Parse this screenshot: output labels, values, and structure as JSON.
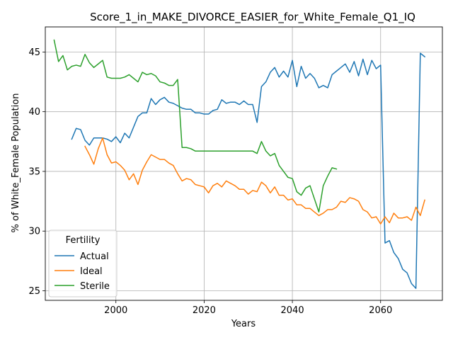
{
  "chart_data": {
    "type": "line",
    "title": "Score_1_in_MAKE_DIVORCE_EASIER_for_White_Female_Q1_IQ",
    "xlabel": "Years",
    "ylabel": "% of White_Female Population",
    "xlim": [
      1984,
      2074
    ],
    "ylim": [
      24.2,
      47.1
    ],
    "xticks": [
      2000,
      2020,
      2040,
      2060
    ],
    "yticks": [
      25,
      30,
      35,
      40,
      45
    ],
    "grid": true,
    "legend": {
      "title": "Fertility",
      "position": "lower-left",
      "entries": [
        "Actual",
        "Ideal",
        "Sterile"
      ]
    },
    "colors": {
      "Actual": "#1f77b4",
      "Ideal": "#ff7f0e",
      "Sterile": "#2ca02c"
    },
    "series": [
      {
        "name": "Actual",
        "x": [
          1990,
          1991,
          1992,
          1993,
          1994,
          1995,
          1996,
          1997,
          1998,
          1999,
          2000,
          2001,
          2002,
          2003,
          2004,
          2005,
          2006,
          2007,
          2008,
          2009,
          2010,
          2011,
          2012,
          2013,
          2014,
          2015,
          2016,
          2017,
          2018,
          2019,
          2020,
          2021,
          2022,
          2023,
          2024,
          2025,
          2026,
          2027,
          2028,
          2029,
          2030,
          2031,
          2032,
          2033,
          2034,
          2035,
          2036,
          2037,
          2038,
          2039,
          2040,
          2041,
          2042,
          2043,
          2044,
          2045,
          2046,
          2047,
          2048,
          2049,
          2050,
          2051,
          2052,
          2053,
          2054,
          2055,
          2056,
          2057,
          2058,
          2059,
          2060,
          2061,
          2062,
          2063,
          2064,
          2065,
          2066,
          2067,
          2068,
          2069,
          2070
        ],
        "y": [
          37.7,
          38.6,
          38.5,
          37.6,
          37.2,
          37.8,
          37.8,
          37.8,
          37.7,
          37.5,
          37.9,
          37.4,
          38.2,
          37.8,
          38.7,
          39.6,
          39.9,
          39.9,
          41.1,
          40.6,
          41.0,
          41.2,
          40.8,
          40.7,
          40.5,
          40.3,
          40.2,
          40.2,
          39.9,
          39.9,
          39.8,
          39.8,
          40.1,
          40.2,
          41.0,
          40.7,
          40.8,
          40.8,
          40.6,
          40.9,
          40.6,
          40.6,
          39.1,
          42.1,
          42.5,
          43.3,
          43.7,
          42.9,
          43.4,
          42.9,
          44.3,
          42.1,
          43.8,
          42.8,
          43.2,
          42.8,
          42.0,
          42.2,
          42.0,
          43.1,
          43.4,
          43.7,
          44.0,
          43.3,
          44.2,
          43.0,
          44.4,
          43.1,
          44.3,
          43.6,
          43.9,
          29.0,
          29.2,
          28.2,
          27.7,
          26.8,
          26.5,
          25.6,
          25.2,
          44.9,
          44.6
        ]
      },
      {
        "name": "Ideal",
        "x": [
          1993,
          1994,
          1995,
          1996,
          1997,
          1998,
          1999,
          2000,
          2001,
          2002,
          2003,
          2004,
          2005,
          2006,
          2007,
          2008,
          2009,
          2010,
          2011,
          2012,
          2013,
          2014,
          2015,
          2016,
          2017,
          2018,
          2019,
          2020,
          2021,
          2022,
          2023,
          2024,
          2025,
          2026,
          2027,
          2028,
          2029,
          2030,
          2031,
          2032,
          2033,
          2034,
          2035,
          2036,
          2037,
          2038,
          2039,
          2040,
          2041,
          2042,
          2043,
          2044,
          2045,
          2046,
          2047,
          2048,
          2049,
          2050,
          2051,
          2052,
          2053,
          2054,
          2055,
          2056,
          2057,
          2058,
          2059,
          2060,
          2061,
          2062,
          2063,
          2064,
          2065,
          2066,
          2067,
          2068,
          2069,
          2070
        ],
        "y": [
          37.1,
          36.4,
          35.6,
          36.9,
          37.8,
          36.4,
          35.7,
          35.8,
          35.5,
          35.1,
          34.3,
          34.8,
          33.9,
          35.1,
          35.8,
          36.4,
          36.2,
          36.0,
          36.0,
          35.7,
          35.5,
          34.8,
          34.2,
          34.4,
          34.3,
          33.9,
          33.8,
          33.7,
          33.2,
          33.8,
          34.0,
          33.7,
          34.2,
          34.0,
          33.8,
          33.5,
          33.5,
          33.1,
          33.4,
          33.3,
          34.1,
          33.8,
          33.2,
          33.7,
          33.0,
          33.0,
          32.6,
          32.7,
          32.2,
          32.2,
          31.9,
          31.9,
          31.6,
          31.3,
          31.5,
          31.8,
          31.8,
          32.0,
          32.5,
          32.4,
          32.8,
          32.7,
          32.5,
          31.8,
          31.6,
          31.1,
          31.2,
          30.6,
          31.2,
          30.7,
          31.5,
          31.1,
          31.1,
          31.2,
          30.9,
          32.0,
          31.3,
          32.6
        ]
      },
      {
        "name": "Sterile",
        "x": [
          1986,
          1987,
          1988,
          1989,
          1990,
          1991,
          1992,
          1993,
          1994,
          1995,
          1996,
          1997,
          1998,
          1999,
          2000,
          2001,
          2002,
          2003,
          2004,
          2005,
          2006,
          2007,
          2008,
          2009,
          2010,
          2011,
          2012,
          2013,
          2014,
          2015,
          2016,
          2017,
          2018,
          2019,
          2020,
          2021,
          2022,
          2023,
          2024,
          2025,
          2026,
          2027,
          2028,
          2029,
          2030,
          2031,
          2032,
          2033,
          2034,
          2035,
          2036,
          2037,
          2038,
          2039,
          2040,
          2041,
          2042,
          2043,
          2044,
          2045,
          2046,
          2047,
          2048,
          2049,
          2050
        ],
        "y": [
          46.0,
          44.2,
          44.7,
          43.5,
          43.8,
          43.9,
          43.8,
          44.8,
          44.1,
          43.7,
          44.0,
          44.3,
          42.9,
          42.8,
          42.8,
          42.8,
          42.9,
          43.1,
          42.8,
          42.5,
          43.3,
          43.1,
          43.2,
          43.0,
          42.5,
          42.4,
          42.2,
          42.2,
          42.7,
          37.0,
          37.0,
          36.9,
          36.7,
          36.7,
          36.7,
          36.7,
          36.7,
          36.7,
          36.7,
          36.7,
          36.7,
          36.7,
          36.7,
          36.7,
          36.7,
          36.7,
          36.5,
          37.5,
          36.7,
          36.3,
          36.5,
          35.5,
          35.0,
          34.5,
          34.4,
          33.3,
          33.0,
          33.6,
          33.8,
          32.7,
          31.6,
          33.8,
          34.6,
          35.3,
          35.2
        ]
      }
    ]
  }
}
